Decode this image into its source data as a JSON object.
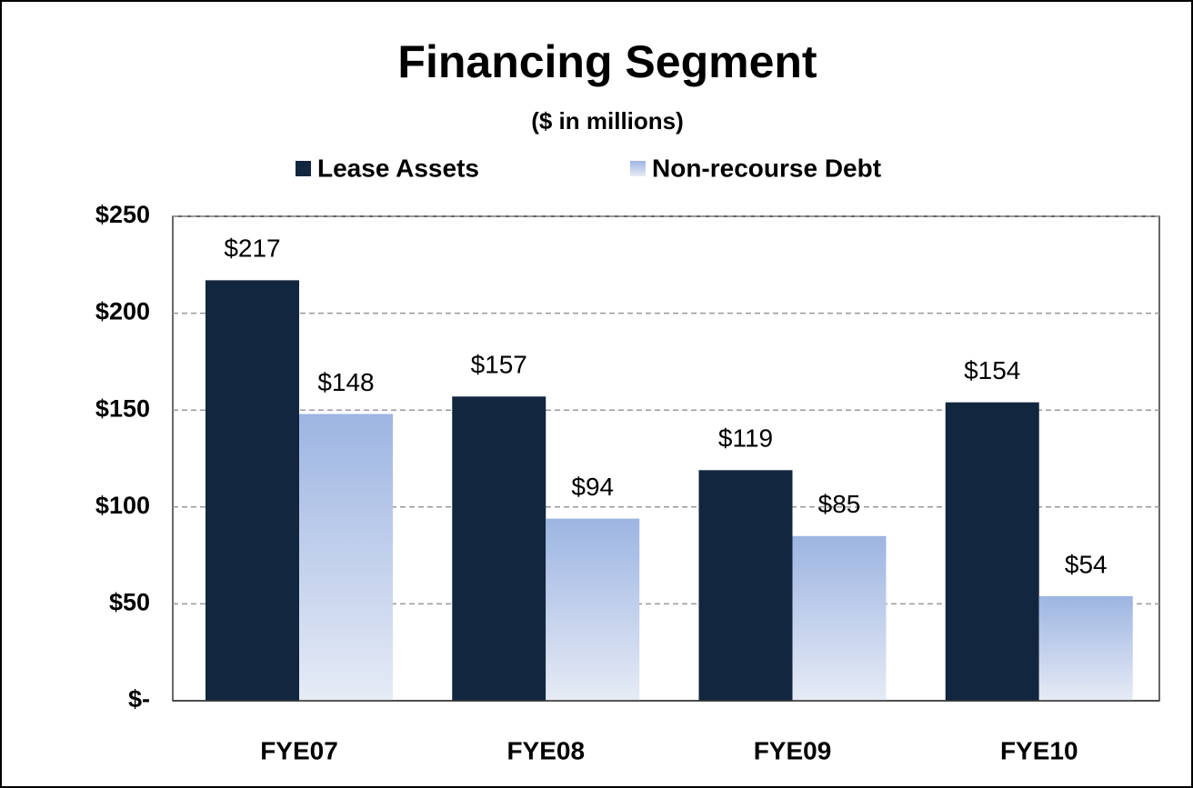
{
  "chart_data": {
    "type": "bar",
    "title": "Financing  Segment",
    "subtitle": "($ in millions)",
    "categories": [
      "FYE07",
      "FYE08",
      "FYE09",
      "FYE10"
    ],
    "series": [
      {
        "name": "Lease Assets",
        "color": "#12263f",
        "values": [
          217,
          157,
          119,
          154
        ],
        "value_labels": [
          "$217",
          "$157",
          "$119",
          "$154"
        ]
      },
      {
        "name": "Non-recourse Debt",
        "color": "#9db5e2",
        "values": [
          148,
          94,
          85,
          54
        ],
        "value_labels": [
          "$148",
          "$94",
          "$85",
          "$54"
        ]
      }
    ],
    "ylim": [
      0,
      250
    ],
    "yticks": [
      {
        "value": 0,
        "label": "$-"
      },
      {
        "value": 50,
        "label": "$50"
      },
      {
        "value": 100,
        "label": "$100"
      },
      {
        "value": 150,
        "label": "$150"
      },
      {
        "value": 200,
        "label": "$200"
      },
      {
        "value": 250,
        "label": "$250"
      }
    ],
    "grid": true,
    "legend": "top"
  }
}
